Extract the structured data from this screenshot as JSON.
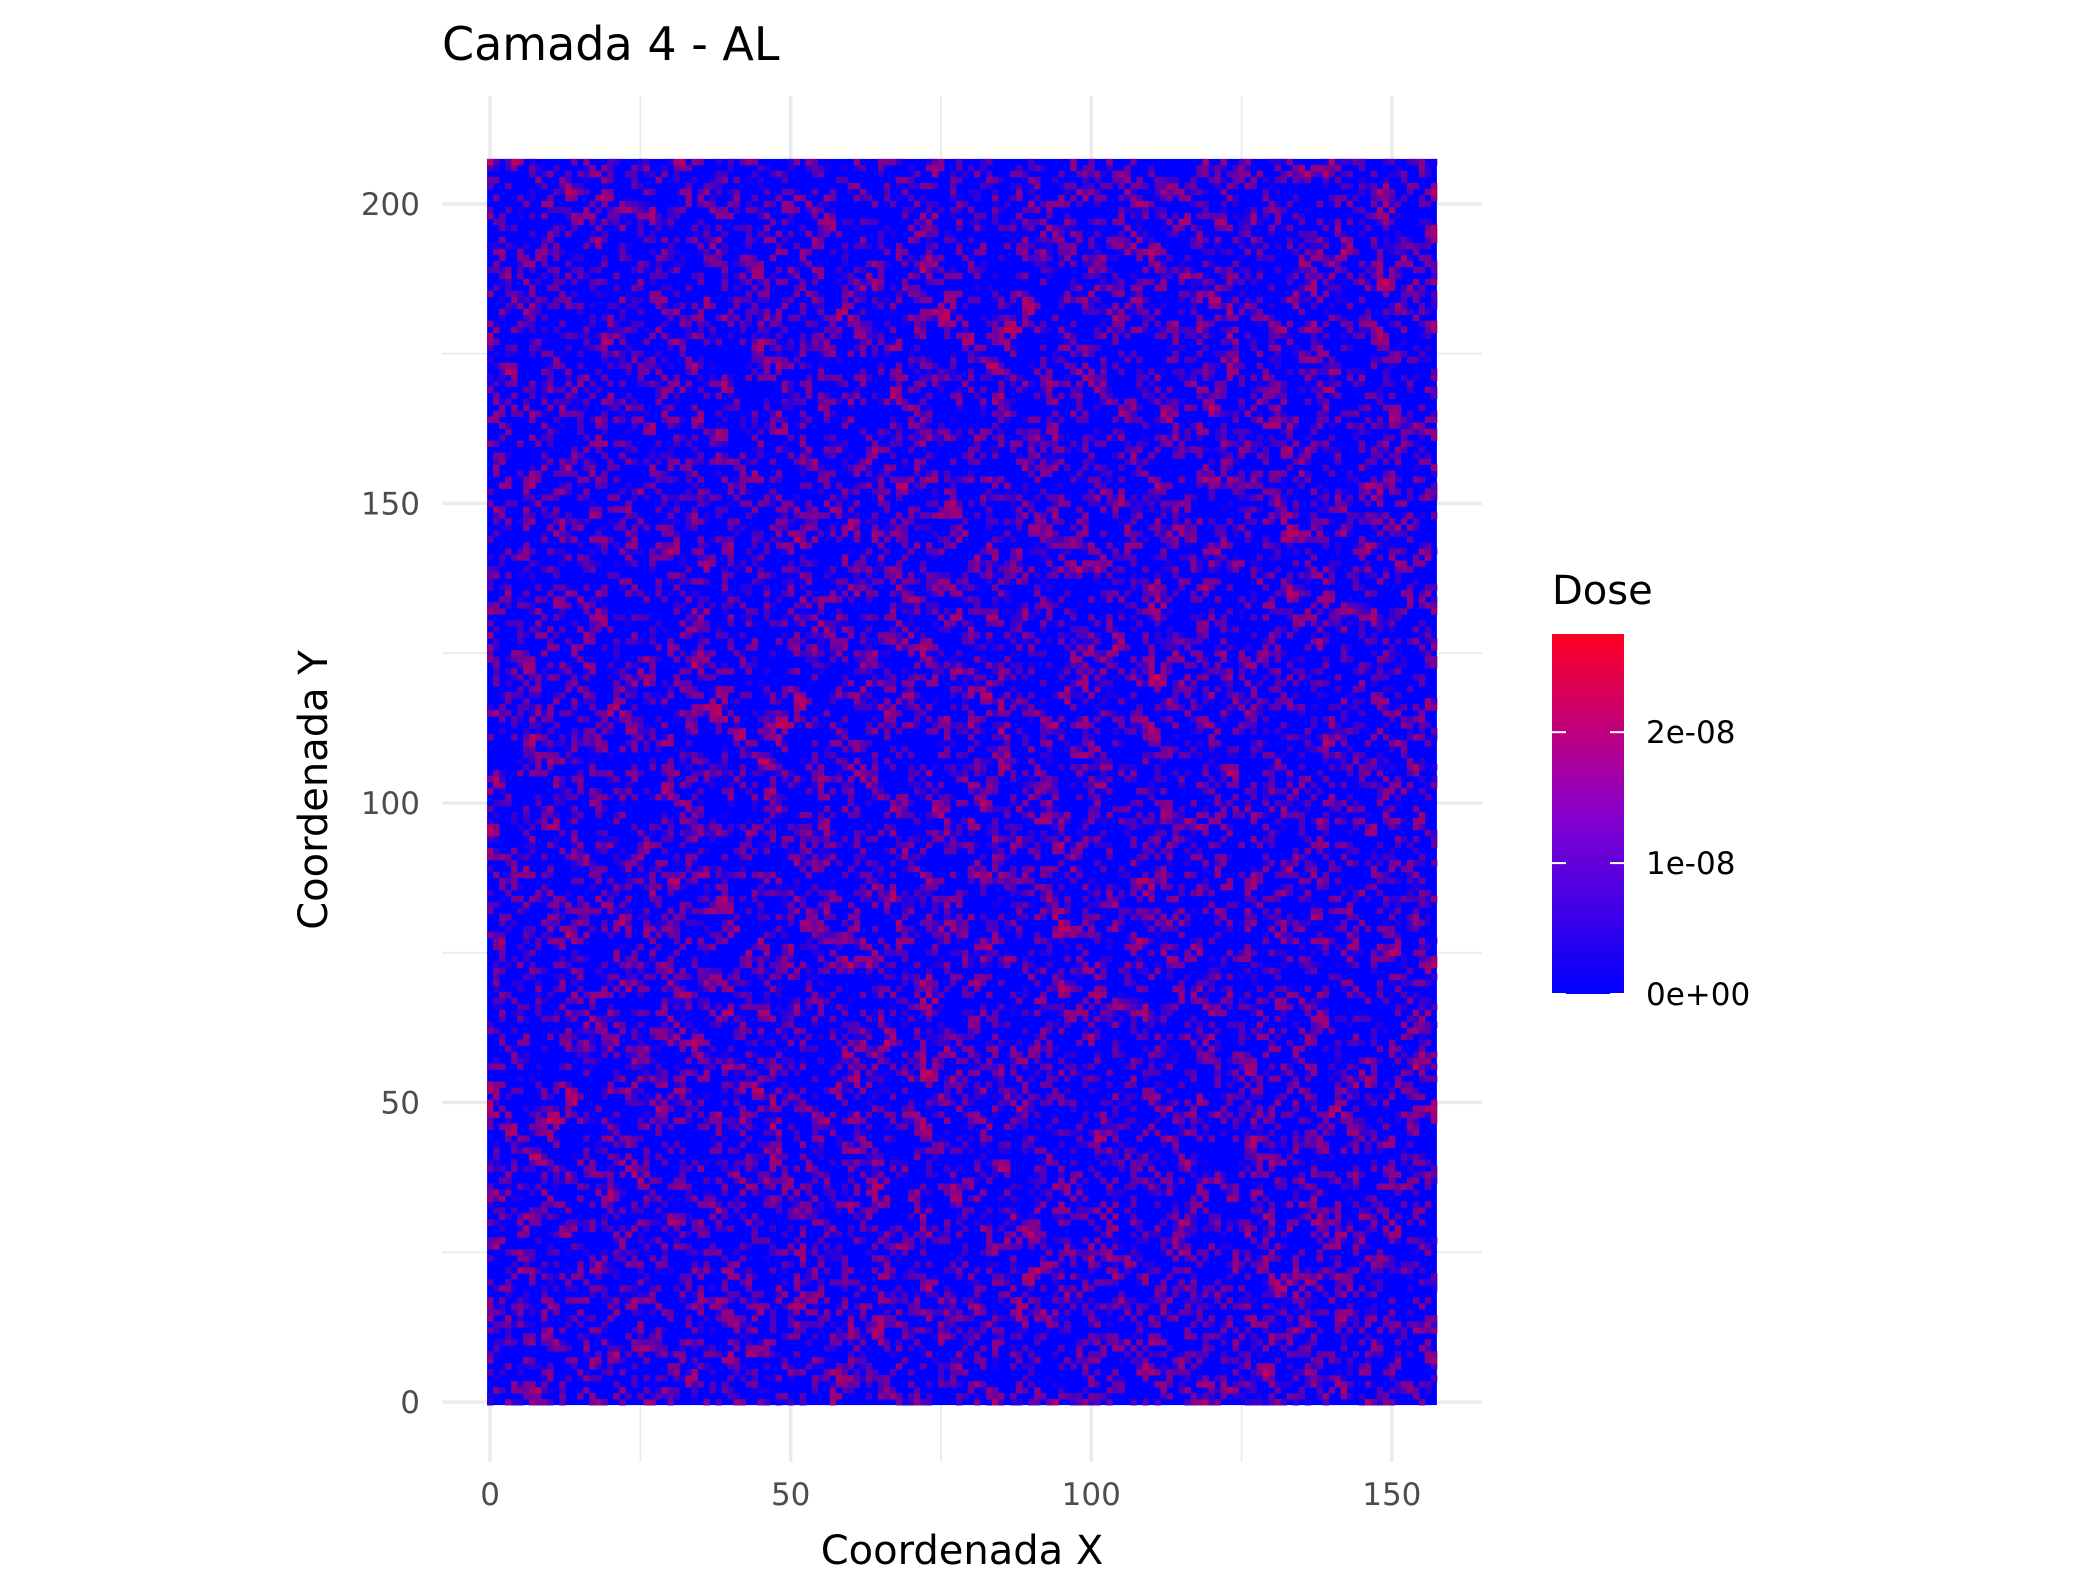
{
  "chart_data": {
    "type": "heatmap",
    "title": "Camada 4 - AL",
    "xlabel": "Coordenada X",
    "ylabel": "Coordenada Y",
    "xlim": [
      -8,
      165
    ],
    "ylim": [
      -10,
      218
    ],
    "x_grid": {
      "start": 0,
      "end": 157,
      "step": 1
    },
    "y_grid": {
      "start": 0,
      "end": 207,
      "step": 1
    },
    "x_ticks": [
      0,
      50,
      100,
      150
    ],
    "x_tick_labels": [
      "0",
      "50",
      "100",
      "150"
    ],
    "y_ticks": [
      0,
      50,
      100,
      150,
      200
    ],
    "y_tick_labels": [
      "0",
      "50",
      "100",
      "150",
      "200"
    ],
    "grid": true,
    "legend": {
      "title": "Dose",
      "position": "right",
      "low_color": "#0000ff",
      "high_color": "#ff0022",
      "min": 0,
      "max": 2.75e-08,
      "breaks": [
        0,
        1e-08,
        2e-08
      ],
      "break_labels": [
        "0e+00",
        "1e-08",
        "2e-08"
      ]
    },
    "values_description": "Random spatially correlated dose field; mostly near 0e+00 (blue) with scattered purple/red cells up to ~2.7e-08"
  }
}
